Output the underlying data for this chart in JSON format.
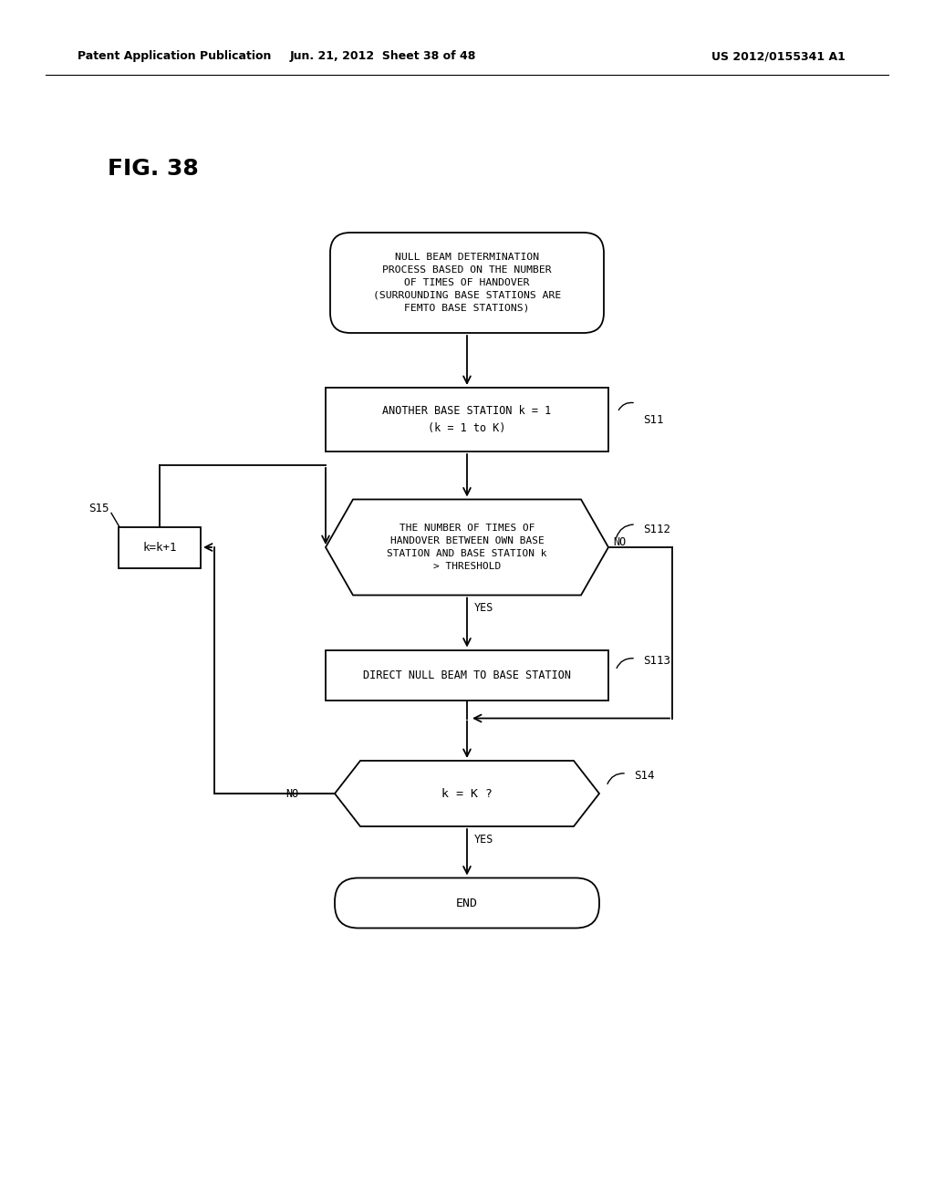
{
  "bg_color": "#ffffff",
  "header_left": "Patent Application Publication",
  "header_center": "Jun. 21, 2012  Sheet 38 of 48",
  "header_right": "US 2012/0155341 A1",
  "fig_label": "FIG. 38",
  "start_text": "NULL BEAM DETERMINATION\nPROCESS BASED ON THE NUMBER\nOF TIMES OF HANDOVER\n(SURROUNDING BASE STATIONS ARE\nFEMTO BASE STATIONS)",
  "s11_text": "ANOTHER BASE STATION k = 1\n(k = 1 to K)",
  "s112_text": "THE NUMBER OF TIMES OF\nHANDOVER BETWEEN OWN BASE\nSTATION AND BASE STATION k\n> THRESHOLD",
  "s113_text": "DIRECT NULL BEAM TO BASE STATION",
  "s14_text": "k = K ?",
  "kbox_text": "k=k+1",
  "end_text": "END",
  "label_s11": "S11",
  "label_s112": "S112",
  "label_s113": "S113",
  "label_s14": "S14",
  "label_s15": "S15",
  "yes_label": "YES",
  "no_label": "NO"
}
